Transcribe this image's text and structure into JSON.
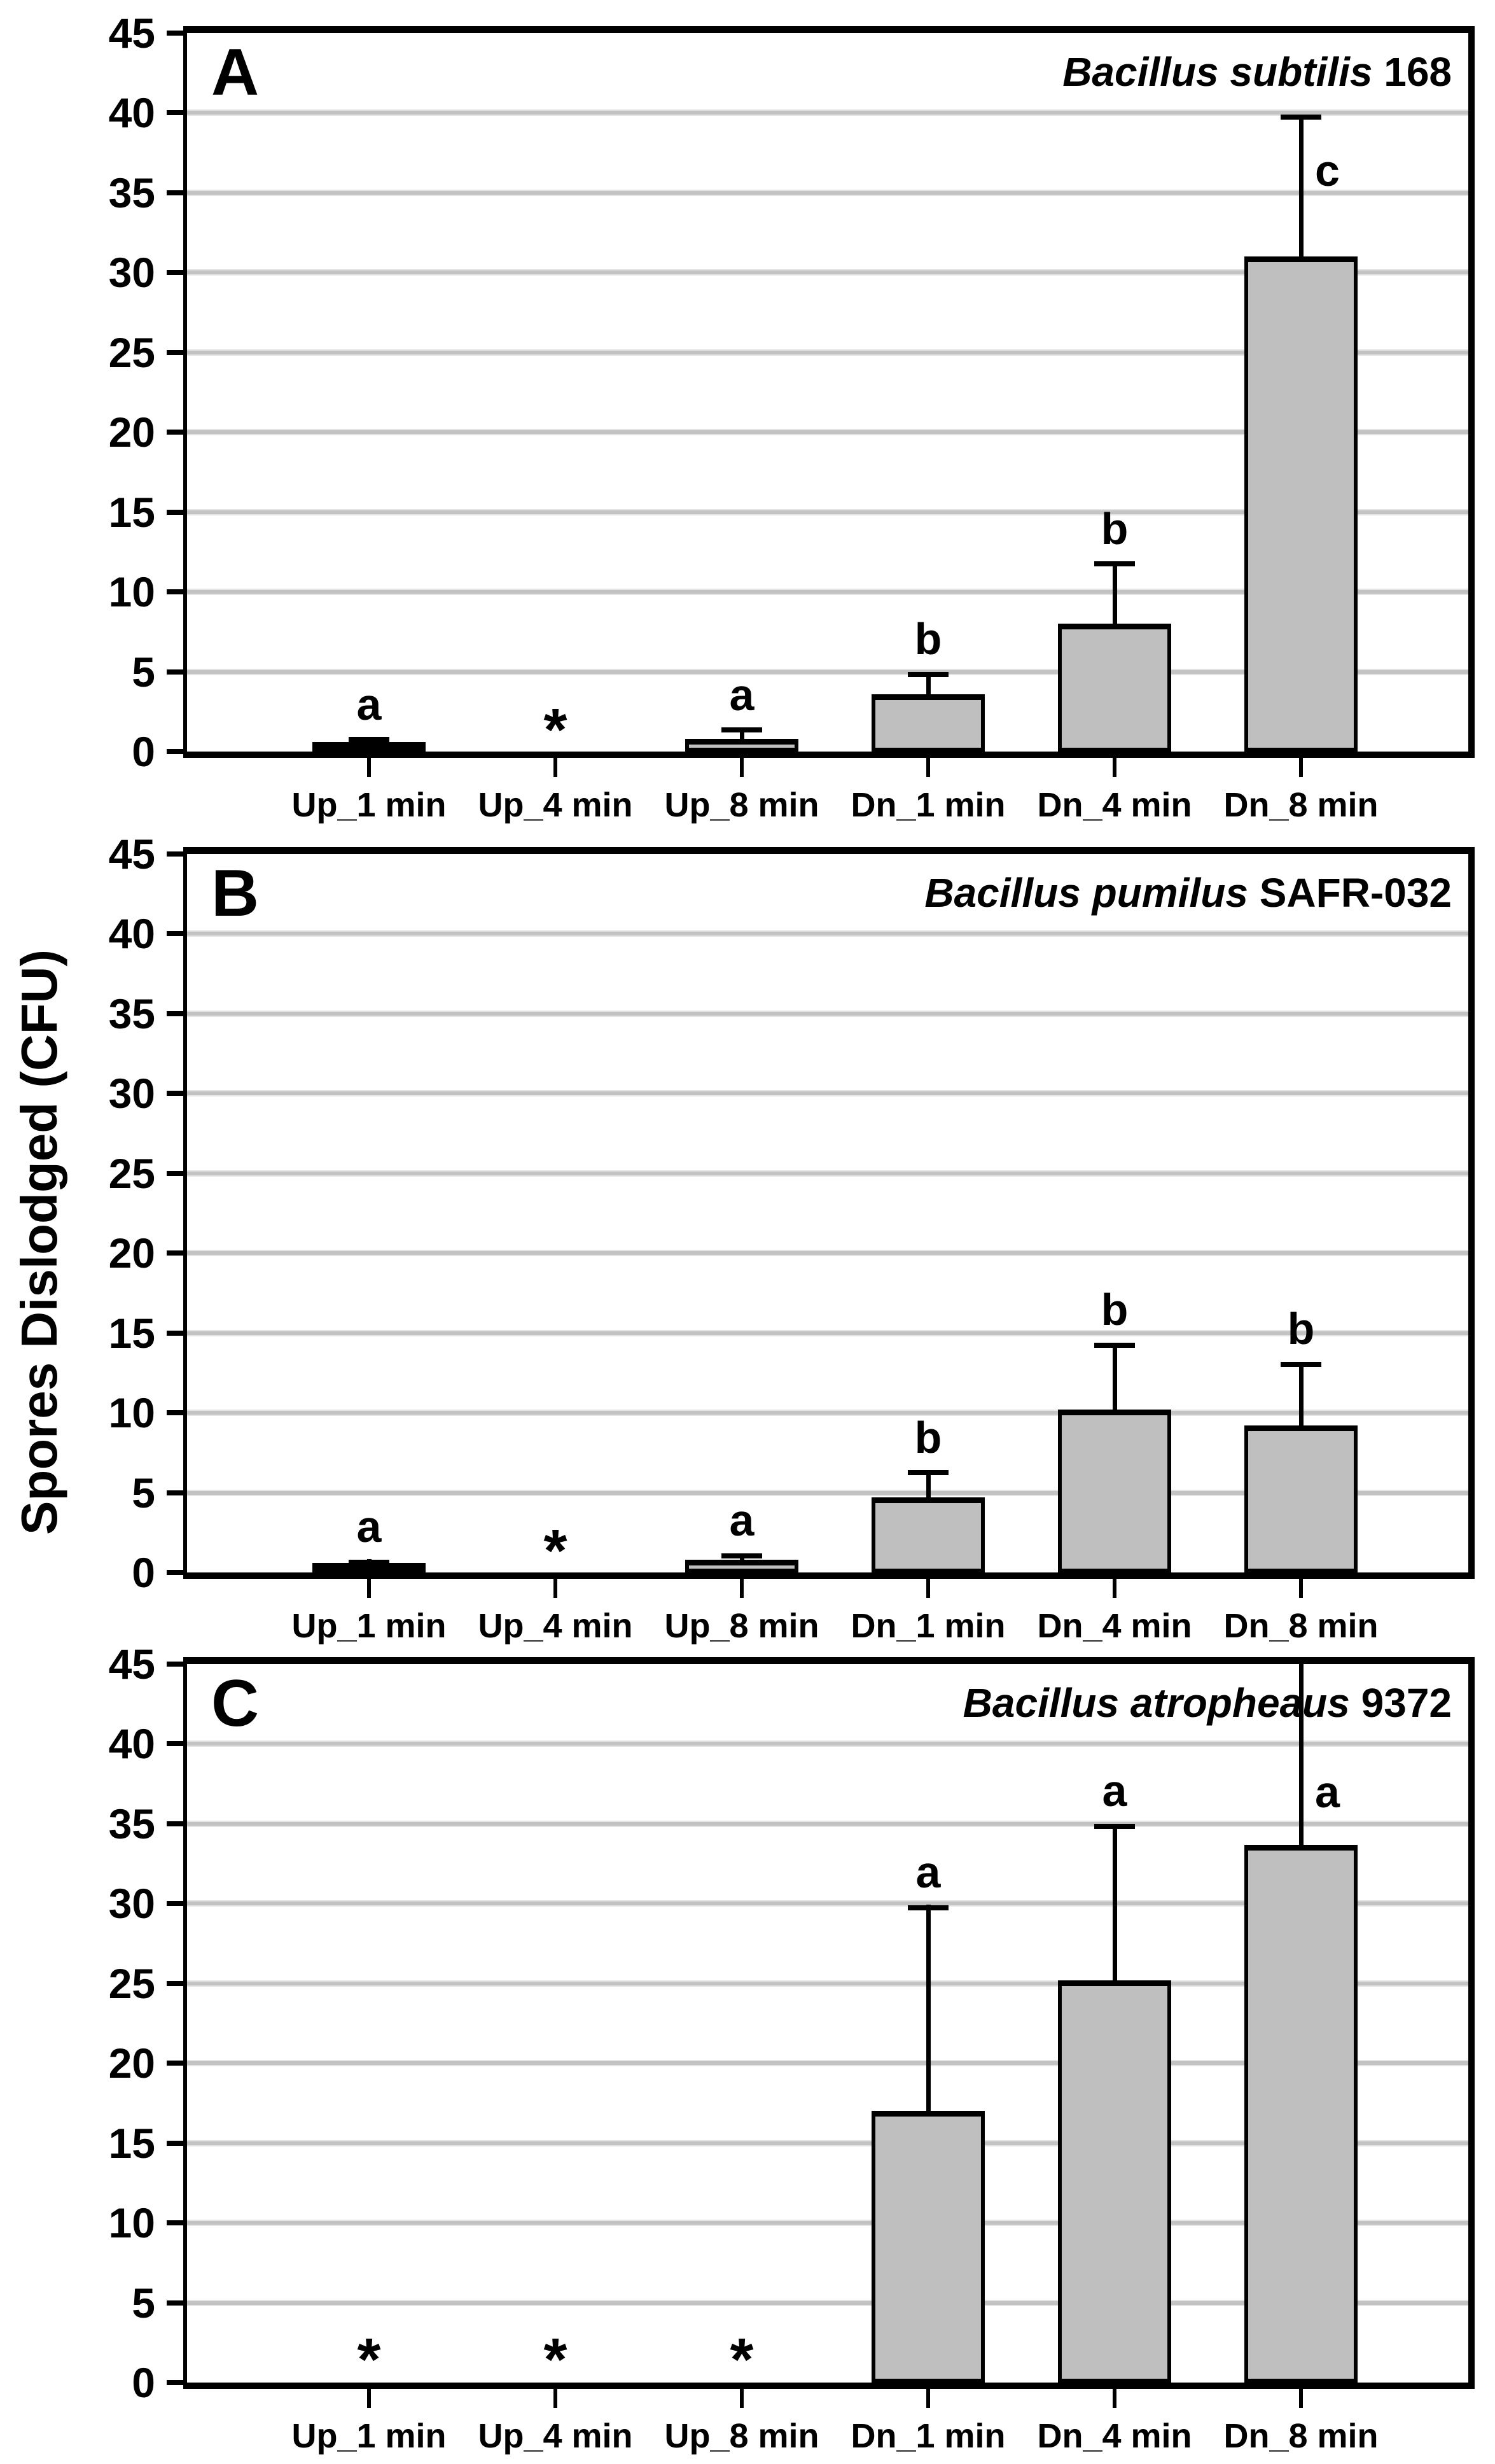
{
  "figure": {
    "background": "#ffffff"
  },
  "y_axis": {
    "label": "Spores Dislodged (CFU)",
    "min": 0,
    "max": 45,
    "tick_step": 5,
    "tick_labels": [
      "0",
      "5",
      "10",
      "15",
      "20",
      "25",
      "30",
      "35",
      "40",
      "45"
    ]
  },
  "x_axis": {
    "categories": [
      "Up_1 min",
      "Up_4 min",
      "Up_8 min",
      "Dn_1 min",
      "Dn_4 min",
      "Dn_8 min"
    ]
  },
  "style": {
    "bar_fill": "#bfbfbf",
    "bar_border": "#000000",
    "grid_color": "#c3c3c3",
    "axis_color": "#000000",
    "text_color": "#000000"
  },
  "chart_data": [
    {
      "type": "bar",
      "panel_letter": "A",
      "title_italic": "Bacillus subtilis",
      "title_plain": "168",
      "ylabel": "Spores Dislodged (CFU)",
      "ylim": [
        0,
        45
      ],
      "grid": true,
      "asterisk_y": 1.9,
      "categories": [
        "Up_1 min",
        "Up_4 min",
        "Up_8 min",
        "Dn_1 min",
        "Dn_4 min",
        "Dn_8 min"
      ],
      "bars": [
        {
          "category": "Up_1 min",
          "value": 0.5,
          "error_top": 0.9,
          "sig_label": "a",
          "sig_placement": "above",
          "no_spores": false
        },
        {
          "category": "Up_4 min",
          "value": 0,
          "error_top": null,
          "sig_label": null,
          "sig_placement": null,
          "no_spores": true
        },
        {
          "category": "Up_8 min",
          "value": 0.8,
          "error_top": 1.5,
          "sig_label": "a",
          "sig_placement": "above",
          "no_spores": false
        },
        {
          "category": "Dn_1 min",
          "value": 3.6,
          "error_top": 5.0,
          "sig_label": "b",
          "sig_placement": "above",
          "no_spores": false
        },
        {
          "category": "Dn_4 min",
          "value": 8.0,
          "error_top": 11.9,
          "sig_label": "b",
          "sig_placement": "above",
          "no_spores": false
        },
        {
          "category": "Dn_8 min",
          "value": 31.0,
          "error_top": 39.9,
          "sig_label": "c",
          "sig_placement": "right",
          "sig_right_y": 35.0,
          "no_spores": false
        }
      ]
    },
    {
      "type": "bar",
      "panel_letter": "B",
      "title_italic": "Bacillus pumilus",
      "title_plain": "SAFR-032",
      "ylabel": "Spores Dislodged (CFU)",
      "ylim": [
        0,
        45
      ],
      "grid": true,
      "asterisk_y": 1.9,
      "categories": [
        "Up_1 min",
        "Up_4 min",
        "Up_8 min",
        "Dn_1 min",
        "Dn_4 min",
        "Dn_8 min"
      ],
      "bars": [
        {
          "category": "Up_1 min",
          "value": 0.5,
          "error_top": 0.8,
          "sig_label": "a",
          "sig_placement": "above",
          "no_spores": false
        },
        {
          "category": "Up_4 min",
          "value": 0,
          "error_top": null,
          "sig_label": null,
          "sig_placement": null,
          "no_spores": true
        },
        {
          "category": "Up_8 min",
          "value": 0.8,
          "error_top": 1.2,
          "sig_label": "a",
          "sig_placement": "above",
          "no_spores": false
        },
        {
          "category": "Dn_1 min",
          "value": 4.7,
          "error_top": 6.4,
          "sig_label": "b",
          "sig_placement": "above",
          "no_spores": false
        },
        {
          "category": "Dn_4 min",
          "value": 10.2,
          "error_top": 14.4,
          "sig_label": "b",
          "sig_placement": "above",
          "no_spores": false
        },
        {
          "category": "Dn_8 min",
          "value": 9.2,
          "error_top": 13.2,
          "sig_label": "b",
          "sig_placement": "above",
          "no_spores": false
        }
      ]
    },
    {
      "type": "bar",
      "panel_letter": "C",
      "title_italic": "Bacillus atropheaus",
      "title_plain": "9372",
      "ylabel": "Spores Dislodged (CFU)",
      "ylim": [
        0,
        45
      ],
      "grid": true,
      "asterisk_y": 2.0,
      "categories": [
        "Up_1 min",
        "Up_4 min",
        "Up_8 min",
        "Dn_1 min",
        "Dn_4 min",
        "Dn_8 min"
      ],
      "bars": [
        {
          "category": "Up_1 min",
          "value": 0,
          "error_top": null,
          "sig_label": null,
          "sig_placement": null,
          "no_spores": true
        },
        {
          "category": "Up_4 min",
          "value": 0,
          "error_top": null,
          "sig_label": null,
          "sig_placement": null,
          "no_spores": true
        },
        {
          "category": "Up_8 min",
          "value": 0,
          "error_top": null,
          "sig_label": null,
          "sig_placement": null,
          "no_spores": true
        },
        {
          "category": "Dn_1 min",
          "value": 17.0,
          "error_top": 29.9,
          "sig_label": "a",
          "sig_placement": "above",
          "no_spores": false
        },
        {
          "category": "Dn_4 min",
          "value": 25.2,
          "error_top": 35.0,
          "sig_label": "a",
          "sig_placement": "above",
          "no_spores": false
        },
        {
          "category": "Dn_8 min",
          "value": 33.7,
          "error_top": 45.5,
          "sig_label": "a",
          "sig_placement": "right",
          "sig_right_y": 35.6,
          "no_spores": false
        }
      ]
    }
  ]
}
